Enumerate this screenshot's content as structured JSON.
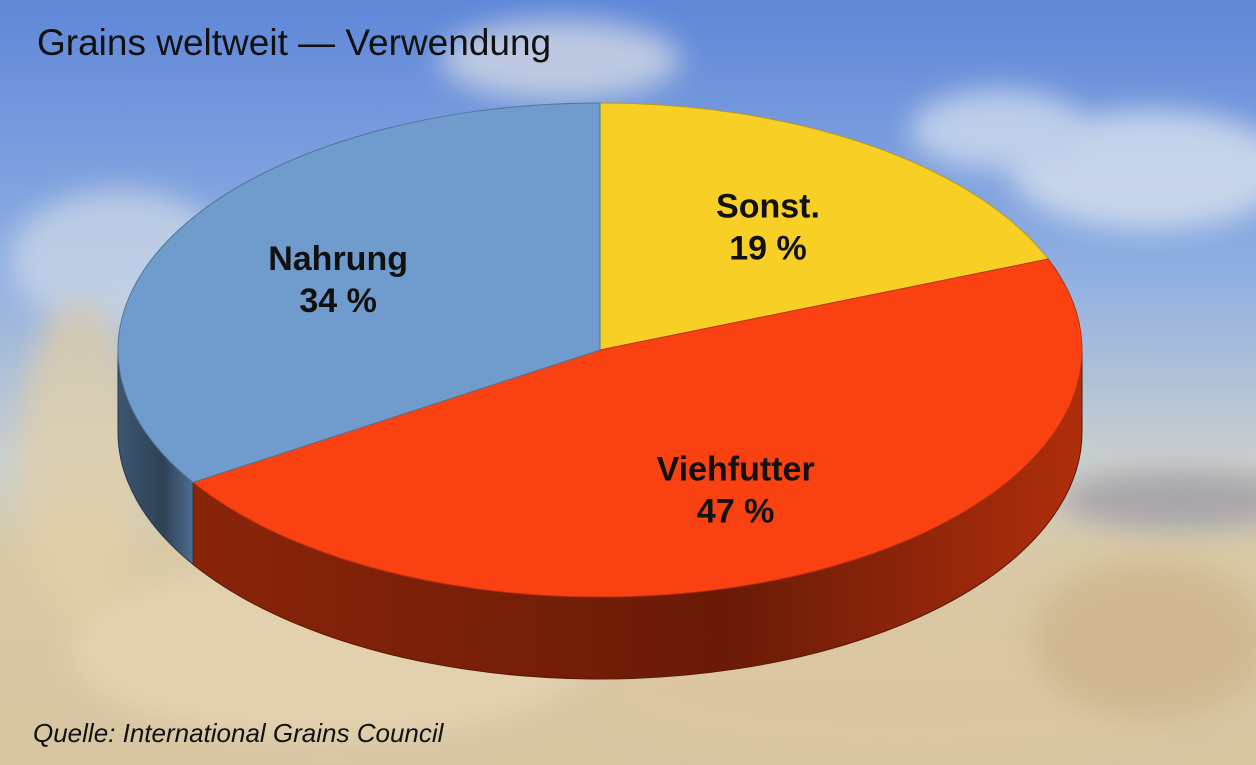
{
  "chart_data": {
    "type": "pie",
    "title": "Grains weltweit — Verwendung",
    "slices": [
      {
        "label": "Sonst.",
        "value": 19,
        "value_label": "19 %",
        "color": "#f8cf25"
      },
      {
        "label": "Viehfutter",
        "value": 47,
        "value_label": "47 %",
        "color": "#fa4111"
      },
      {
        "label": "Nahrung",
        "value": 34,
        "value_label": "34 %",
        "color": "#6f9ccc"
      }
    ],
    "style": "3d"
  },
  "source": "Quelle: International Grains Council"
}
